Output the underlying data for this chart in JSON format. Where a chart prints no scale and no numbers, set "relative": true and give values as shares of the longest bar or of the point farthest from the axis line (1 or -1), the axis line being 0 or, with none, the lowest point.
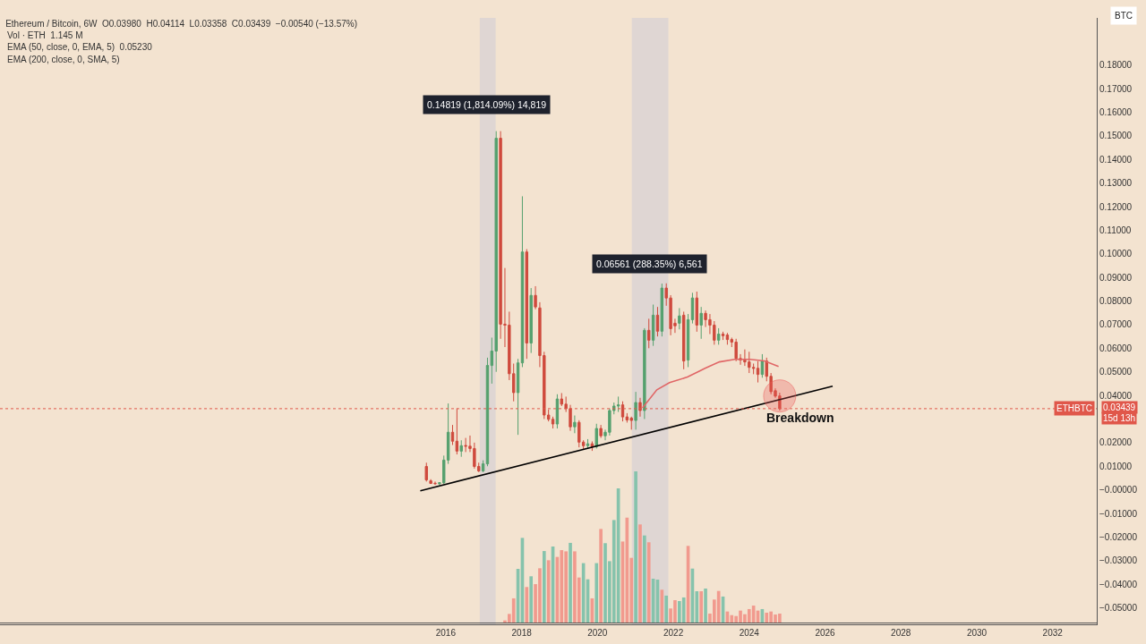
{
  "chart_data": [
    {
      "type": "candlestick",
      "title": "Ethereum / Bitcoin, 6W  O0.03980  H0.04114  L0.03358  C0.03439  −0.00540 (−13.57%)",
      "ylabel": "BTC",
      "x": [
        "2015-06-29",
        "2015-08-10",
        "2015-09-21",
        "2015-11-02",
        "2015-12-14",
        "2016-01-25",
        "2016-03-07",
        "2016-04-18",
        "2016-05-30",
        "2016-07-11",
        "2016-08-22",
        "2016-10-03",
        "2016-11-14",
        "2016-12-26",
        "2017-02-06",
        "2017-03-20",
        "2017-05-01",
        "2017-06-12",
        "2017-07-24",
        "2017-09-04",
        "2017-10-16",
        "2017-11-27",
        "2018-01-08",
        "2018-02-19",
        "2018-04-02",
        "2018-05-14",
        "2018-06-25",
        "2018-08-06",
        "2018-09-17",
        "2018-10-29",
        "2018-12-10",
        "2019-01-21",
        "2019-03-04",
        "2019-04-15",
        "2019-05-27",
        "2019-07-08",
        "2019-08-19",
        "2019-09-30",
        "2019-11-11",
        "2019-12-23",
        "2020-02-03",
        "2020-03-16",
        "2020-04-27",
        "2020-06-08",
        "2020-07-20",
        "2020-08-31",
        "2020-10-12",
        "2020-11-23",
        "2021-01-04",
        "2021-02-15",
        "2021-03-29",
        "2021-05-10",
        "2021-06-21",
        "2021-08-02",
        "2021-09-13",
        "2021-10-25",
        "2021-12-06",
        "2022-01-17",
        "2022-02-28",
        "2022-04-11",
        "2022-05-23",
        "2022-07-04",
        "2022-08-15",
        "2022-09-26",
        "2022-11-07",
        "2022-12-19",
        "2023-01-30",
        "2023-03-13",
        "2023-04-24",
        "2023-06-05",
        "2023-07-17",
        "2023-08-28",
        "2023-10-09",
        "2023-11-20",
        "2024-01-01",
        "2024-02-12",
        "2024-03-25",
        "2024-05-06",
        "2024-06-17",
        "2024-07-29",
        "2024-09-09",
        "2024-10-21"
      ],
      "ohlc": [
        [
          0.0099,
          0.0115,
          0.0035,
          0.0042
        ],
        [
          0.0038,
          0.0045,
          0.0025,
          0.0027
        ],
        [
          0.0028,
          0.0035,
          0.0022,
          0.0026
        ],
        [
          0.0026,
          0.0032,
          0.002,
          0.003
        ],
        [
          0.003,
          0.0145,
          0.0025,
          0.0126
        ],
        [
          0.0126,
          0.0366,
          0.011,
          0.0244
        ],
        [
          0.0244,
          0.0275,
          0.019,
          0.0206
        ],
        [
          0.0206,
          0.0345,
          0.015,
          0.0164
        ],
        [
          0.0164,
          0.021,
          0.014,
          0.0187
        ],
        [
          0.0188,
          0.022,
          0.016,
          0.0185
        ],
        [
          0.0185,
          0.023,
          0.016,
          0.0175
        ],
        [
          0.0175,
          0.02,
          0.009,
          0.0099
        ],
        [
          0.0099,
          0.0115,
          0.0075,
          0.008
        ],
        [
          0.008,
          0.0125,
          0.0075,
          0.011
        ],
        [
          0.011,
          0.056,
          0.01,
          0.0527
        ],
        [
          0.0527,
          0.0645,
          0.045,
          0.0588
        ],
        [
          0.0588,
          0.152,
          0.05,
          0.149
        ],
        [
          0.149,
          0.152,
          0.064,
          0.0702
        ],
        [
          0.0702,
          0.094,
          0.0605,
          0.0698
        ],
        [
          0.0698,
          0.0755,
          0.0465,
          0.0492
        ],
        [
          0.0492,
          0.0535,
          0.0375,
          0.0412
        ],
        [
          0.0412,
          0.0555,
          0.0233,
          0.0538
        ],
        [
          0.0538,
          0.1244,
          0.052,
          0.1008
        ],
        [
          0.1008,
          0.102,
          0.0555,
          0.0622
        ],
        [
          0.0622,
          0.0855,
          0.058,
          0.0824
        ],
        [
          0.0824,
          0.0863,
          0.0765,
          0.0775
        ],
        [
          0.0771,
          0.0795,
          0.052,
          0.0569
        ],
        [
          0.0569,
          0.0585,
          0.03,
          0.0317
        ],
        [
          0.0317,
          0.034,
          0.029,
          0.0299
        ],
        [
          0.0299,
          0.031,
          0.026,
          0.0279
        ],
        [
          0.0279,
          0.0405,
          0.026,
          0.0385
        ],
        [
          0.0385,
          0.041,
          0.0355,
          0.0363
        ],
        [
          0.0363,
          0.0395,
          0.033,
          0.0344
        ],
        [
          0.0344,
          0.036,
          0.025,
          0.0267
        ],
        [
          0.0267,
          0.0315,
          0.024,
          0.0286
        ],
        [
          0.0286,
          0.0295,
          0.018,
          0.0202
        ],
        [
          0.0202,
          0.021,
          0.017,
          0.0187
        ],
        [
          0.0187,
          0.0215,
          0.0175,
          0.0195
        ],
        [
          0.0195,
          0.0205,
          0.0165,
          0.0183
        ],
        [
          0.0183,
          0.028,
          0.0175,
          0.026
        ],
        [
          0.026,
          0.0275,
          0.022,
          0.0229
        ],
        [
          0.0229,
          0.0255,
          0.021,
          0.0244
        ],
        [
          0.0244,
          0.0345,
          0.023,
          0.0336
        ],
        [
          0.0336,
          0.037,
          0.032,
          0.0355
        ],
        [
          0.0355,
          0.0395,
          0.033,
          0.036
        ],
        [
          0.036,
          0.0375,
          0.029,
          0.0309
        ],
        [
          0.0309,
          0.0325,
          0.0285,
          0.0296
        ],
        [
          0.0304,
          0.031,
          0.0255,
          0.0294
        ],
        [
          0.0294,
          0.0415,
          0.0255,
          0.037
        ],
        [
          0.037,
          0.039,
          0.031,
          0.0336
        ],
        [
          0.0336,
          0.0685,
          0.03,
          0.0676
        ],
        [
          0.0676,
          0.0725,
          0.06,
          0.0634
        ],
        [
          0.0634,
          0.0785,
          0.061,
          0.074
        ],
        [
          0.074,
          0.0775,
          0.065,
          0.0672
        ],
        [
          0.0672,
          0.0874,
          0.065,
          0.0855
        ],
        [
          0.0855,
          0.0875,
          0.078,
          0.0813
        ],
        [
          0.0813,
          0.0825,
          0.0655,
          0.0683
        ],
        [
          0.0706,
          0.0725,
          0.0665,
          0.0695
        ],
        [
          0.0706,
          0.077,
          0.068,
          0.0737
        ],
        [
          0.074,
          0.0755,
          0.0511,
          0.0546
        ],
        [
          0.055,
          0.0745,
          0.052,
          0.0721
        ],
        [
          0.0721,
          0.0835,
          0.0705,
          0.0813
        ],
        [
          0.0813,
          0.084,
          0.067,
          0.0698
        ],
        [
          0.0698,
          0.0775,
          0.064,
          0.0748
        ],
        [
          0.0748,
          0.076,
          0.069,
          0.0721
        ],
        [
          0.0721,
          0.0745,
          0.066,
          0.0698
        ],
        [
          0.0698,
          0.0715,
          0.0615,
          0.0634
        ],
        [
          0.0634,
          0.0685,
          0.0615,
          0.066
        ],
        [
          0.066,
          0.067,
          0.0635,
          0.0653
        ],
        [
          0.0656,
          0.0665,
          0.0615,
          0.0637
        ],
        [
          0.0637,
          0.0645,
          0.0605,
          0.0626
        ],
        [
          0.0626,
          0.064,
          0.0545,
          0.0557
        ],
        [
          0.0557,
          0.0575,
          0.053,
          0.055
        ],
        [
          0.055,
          0.0595,
          0.0525,
          0.0542
        ],
        [
          0.0542,
          0.0585,
          0.0495,
          0.0519
        ],
        [
          0.0519,
          0.0535,
          0.049,
          0.0515
        ],
        [
          0.0515,
          0.0545,
          0.0455,
          0.0489
        ],
        [
          0.0489,
          0.0575,
          0.0475,
          0.0546
        ],
        [
          0.0546,
          0.056,
          0.046,
          0.0481
        ],
        [
          0.0481,
          0.0495,
          0.0405,
          0.0416
        ],
        [
          0.042,
          0.043,
          0.039,
          0.0397
        ],
        [
          0.0398,
          0.04114,
          0.03358,
          0.03439
        ]
      ],
      "series": [
        {
          "type": "line",
          "color": "#e06666",
          "x": [
            "2021-03-10",
            "2021-07-26",
            "2021-11-25",
            "2022-05-16",
            "2022-09-03",
            "2022-11-02",
            "2023-03-20",
            "2023-08-15",
            "2024-01-08",
            "2024-05-27",
            "2024-10-10"
          ],
          "values": [
            0.0347,
            0.0424,
            0.0454,
            0.0478,
            0.0502,
            0.0515,
            0.0542,
            0.0553,
            0.0553,
            0.0546,
            0.0523
          ]
        },
        {
          "type": "line",
          "color": "#000000",
          "x": [
            "2015-05-01",
            "2026-03-15"
          ],
          "values": [
            -0.0004,
            0.0439
          ]
        }
      ],
      "annotations": [
        "Vol · ETH  1.145 M",
        "EMA (50, close, 0, EMA, 5)  0.05230",
        "EMA (200, close, 0, SMA, 5)",
        "0.14819 (1,814.09%) 14,819",
        "0.06561 (288.35%) 6,561",
        "Breakdown",
        "0.03439",
        "15d 13h"
      ],
      "ref_lines": [
        {
          "axis": "y",
          "value": 0.03439,
          "label": "ETHBTC",
          "color": "#e0574a",
          "line_style": "dotted"
        }
      ],
      "bands": [
        {
          "axis": "x",
          "from": "2016-11-24",
          "to": "2017-04-26",
          "color": "#b9bedb"
        },
        {
          "axis": "x",
          "from": "2020-11-27",
          "to": "2021-11-14",
          "color": "#b9bedb"
        }
      ],
      "xlim": [
        "2004-04-01",
        "2033-03-01"
      ],
      "xticks": [
        "2016",
        "2018",
        "2020",
        "2022",
        "2024",
        "2026",
        "2028",
        "2030",
        "2032"
      ],
      "ylim": [
        -0.057,
        0.2
      ],
      "yticks": [
        {
          "value": -0.05,
          "label": "−0.05000"
        },
        {
          "value": -0.04,
          "label": "−0.04000"
        },
        {
          "value": -0.03,
          "label": "−0.03000"
        },
        {
          "value": -0.02,
          "label": "−0.02000"
        },
        {
          "value": -0.01,
          "label": "−0.01000"
        },
        {
          "value": 0,
          "label": "−0.00000"
        },
        {
          "value": 0.01,
          "label": "0.01000"
        },
        {
          "value": 0.02,
          "label": "0.02000"
        },
        {
          "value": 0.04,
          "label": "0.04000"
        },
        {
          "value": 0.05,
          "label": "0.05000"
        },
        {
          "value": 0.06,
          "label": "0.06000"
        },
        {
          "value": 0.07,
          "label": "0.07000"
        },
        {
          "value": 0.08,
          "label": "0.08000"
        },
        {
          "value": 0.09,
          "label": "0.09000"
        },
        {
          "value": 0.1,
          "label": "0.10000"
        },
        {
          "value": 0.11,
          "label": "0.11000"
        },
        {
          "value": 0.12,
          "label": "0.12000"
        },
        {
          "value": 0.13,
          "label": "0.13000"
        },
        {
          "value": 0.14,
          "label": "0.14000"
        },
        {
          "value": 0.15,
          "label": "0.15000"
        },
        {
          "value": 0.16,
          "label": "0.16000"
        },
        {
          "value": 0.17,
          "label": "0.17000"
        },
        {
          "value": 0.18,
          "label": "0.18000"
        }
      ]
    },
    {
      "type": "bar",
      "relative": true,
      "tick_labels": false,
      "xlim": [
        "2004-04-01",
        "2033-03-01"
      ],
      "xticks": [
        "2016",
        "2018",
        "2020",
        "2022",
        "2024",
        "2026",
        "2028",
        "2030",
        "2032"
      ],
      "x": [
        "2017-07-24",
        "2017-09-04",
        "2017-10-16",
        "2017-11-27",
        "2018-01-08",
        "2018-02-19",
        "2018-04-02",
        "2018-05-14",
        "2018-06-25",
        "2018-08-06",
        "2018-09-17",
        "2018-10-29",
        "2018-12-10",
        "2019-01-21",
        "2019-03-04",
        "2019-04-15",
        "2019-05-27",
        "2019-07-08",
        "2019-08-19",
        "2019-09-30",
        "2019-11-11",
        "2019-12-23",
        "2020-02-03",
        "2020-03-16",
        "2020-04-27",
        "2020-06-08",
        "2020-07-20",
        "2020-08-31",
        "2020-10-12",
        "2020-11-23",
        "2021-01-04",
        "2021-02-15",
        "2021-03-29",
        "2021-05-10",
        "2021-06-21",
        "2021-08-02",
        "2021-09-13",
        "2021-10-25",
        "2021-12-06",
        "2022-01-17",
        "2022-02-28",
        "2022-04-11",
        "2022-05-23",
        "2022-07-04",
        "2022-08-15",
        "2022-09-26",
        "2022-11-07",
        "2022-12-19",
        "2023-01-30",
        "2023-03-13",
        "2023-04-24",
        "2023-06-05",
        "2023-07-17",
        "2023-08-28",
        "2023-10-09",
        "2023-11-20",
        "2024-01-01",
        "2024-02-12",
        "2024-03-25",
        "2024-05-06",
        "2024-06-17",
        "2024-07-29",
        "2024-09-09",
        "2024-10-21"
      ],
      "values": [
        0.014,
        0.057,
        0.16,
        0.355,
        0.56,
        0.235,
        0.306,
        0.254,
        0.359,
        0.473,
        0.412,
        0.503,
        0.434,
        0.479,
        0.471,
        0.527,
        0.471,
        0.298,
        0.393,
        0.286,
        0.16,
        0.393,
        0.619,
        0.525,
        0.406,
        0.678,
        0.888,
        0.536,
        0.694,
        0.428,
        1,
        0.649,
        0.576,
        0.531,
        0.29,
        0.284,
        0.217,
        0.178,
        0.093,
        0.148,
        0.142,
        0.166,
        0.507,
        0.357,
        0.207,
        0.207,
        0.225,
        0.059,
        0.152,
        0.209,
        0.172,
        0.073,
        0.049,
        0.043,
        0.079,
        0.055,
        0.089,
        0.112,
        0.079,
        0.089,
        0.065,
        0.073,
        0.053,
        0.059
      ],
      "colors": [
        "#f19a8e",
        "#f19a8e",
        "#f19a8e",
        "#86c3ac",
        "#86c3ac",
        "#f19a8e",
        "#86c3ac",
        "#f19a8e",
        "#f19a8e",
        "#86c3ac",
        "#f19a8e",
        "#86c3ac",
        "#f19a8e",
        "#f19a8e",
        "#f19a8e",
        "#86c3ac",
        "#f19a8e",
        "#f19a8e",
        "#86c3ac",
        "#86c3ac",
        "#f19a8e",
        "#86c3ac",
        "#f19a8e",
        "#86c3ac",
        "#86c3ac",
        "#86c3ac",
        "#86c3ac",
        "#f19a8e",
        "#f19a8e",
        "#f19a8e",
        "#86c3ac",
        "#f19a8e",
        "#86c3ac",
        "#f19a8e",
        "#86c3ac",
        "#86c3ac",
        "#f19a8e",
        "#86c3ac",
        "#f19a8e",
        "#f19a8e",
        "#86c3ac",
        "#86c3ac",
        "#f19a8e",
        "#86c3ac",
        "#86c3ac",
        "#f19a8e",
        "#86c3ac",
        "#f19a8e",
        "#f19a8e",
        "#f19a8e",
        "#86c3ac",
        "#f19a8e",
        "#f19a8e",
        "#f19a8e",
        "#f19a8e",
        "#f19a8e",
        "#f19a8e",
        "#f19a8e",
        "#f19a8e",
        "#86c3ac",
        "#f19a8e",
        "#f19a8e",
        "#f19a8e",
        "#f19a8e"
      ]
    }
  ]
}
